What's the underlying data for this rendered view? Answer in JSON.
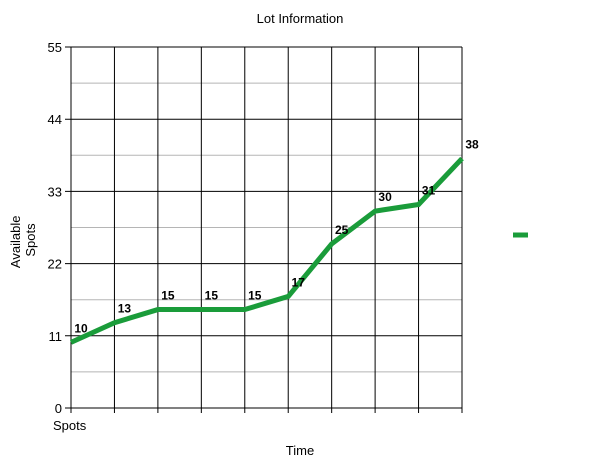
{
  "chart_data": {
    "type": "line",
    "title": "Lot Information",
    "xlabel": "Time",
    "ylabel": [
      "Available",
      "Spots"
    ],
    "x_tick_labels": [
      "Spots",
      "",
      "",
      "",
      "",
      "",
      "",
      "",
      "",
      ""
    ],
    "y_ticks": [
      0,
      11,
      22,
      33,
      44,
      55
    ],
    "ylim": [
      0,
      55
    ],
    "grid": true,
    "legend_position": "right",
    "series": [
      {
        "color": "#1a9c3a",
        "values": [
          10,
          13,
          15,
          15,
          15,
          17,
          25,
          30,
          31,
          38
        ]
      }
    ]
  }
}
